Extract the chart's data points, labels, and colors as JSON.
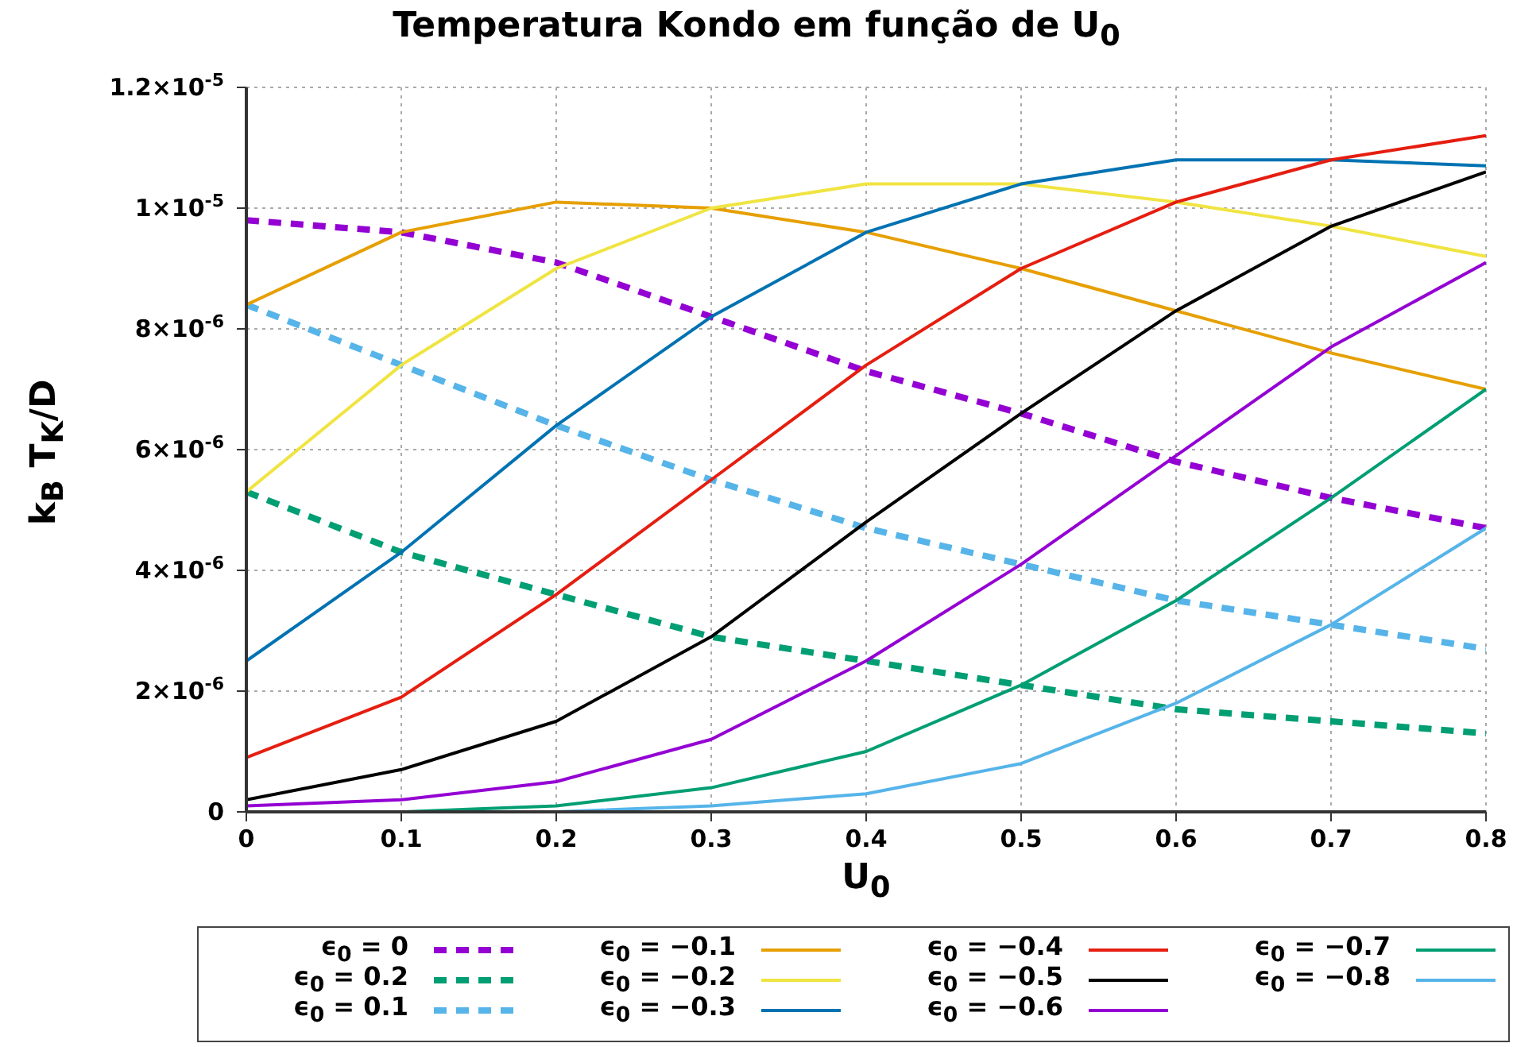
{
  "chart_data": {
    "type": "line",
    "title": "Temperatura Kondo em função de U$_{0}$",
    "xlabel": "U$_{0}$",
    "ylabel": "k$_{B}$ T$_{K}$/D",
    "x": [
      0,
      0.1,
      0.2,
      0.3,
      0.4,
      0.5,
      0.6,
      0.7,
      0.8
    ],
    "xlim": [
      0,
      0.8
    ],
    "xticks": [
      0,
      0.1,
      0.2,
      0.3,
      0.4,
      0.5,
      0.6,
      0.7,
      0.8
    ],
    "ylim": [
      0,
      1.2e-05
    ],
    "yticks": [
      {
        "value": 0,
        "label": "0"
      },
      {
        "value": 2e-06,
        "label": "2×10$^{-6}$"
      },
      {
        "value": 4e-06,
        "label": "4×10$^{-6}$"
      },
      {
        "value": 6e-06,
        "label": "6×10$^{-6}$"
      },
      {
        "value": 8e-06,
        "label": "8×10$^{-6}$"
      },
      {
        "value": 1e-05,
        "label": "1×10$^{-5}$"
      },
      {
        "value": 1.2e-05,
        "label": "1.2×10$^{-5}$"
      }
    ],
    "grid": true,
    "legend": "bottom",
    "marker": "none",
    "series": [
      {
        "name": "ϵ$_{0}$ = 0",
        "color": "#9400d3",
        "line_style": "dashed",
        "values": [
          9.8e-06,
          9.6e-06,
          9.1e-06,
          8.2e-06,
          7.3e-06,
          6.6e-06,
          5.8e-06,
          5.2e-06,
          4.7e-06
        ]
      },
      {
        "name": "ϵ$_{0}$ = 0.2",
        "color": "#009e73",
        "line_style": "dashed",
        "values": [
          5.3e-06,
          4.3e-06,
          3.6e-06,
          2.9e-06,
          2.5e-06,
          2.1e-06,
          1.7e-06,
          1.5e-06,
          1.3e-06
        ]
      },
      {
        "name": "ϵ$_{0}$ = 0.1",
        "color": "#56b4e9",
        "line_style": "dashed",
        "values": [
          8.4e-06,
          7.4e-06,
          6.4e-06,
          5.5e-06,
          4.7e-06,
          4.1e-06,
          3.5e-06,
          3.1e-06,
          2.7e-06
        ]
      },
      {
        "name": "ϵ$_{0}$ = −0.1",
        "color": "#e69f00",
        "line_style": "solid",
        "values": [
          8.4e-06,
          9.6e-06,
          1.01e-05,
          1e-05,
          9.6e-06,
          9e-06,
          8.3e-06,
          7.6e-06,
          7e-06
        ]
      },
      {
        "name": "ϵ$_{0}$ = −0.2",
        "color": "#f0e442",
        "line_style": "solid",
        "values": [
          5.3e-06,
          7.4e-06,
          9e-06,
          1e-05,
          1.04e-05,
          1.04e-05,
          1.01e-05,
          9.7e-06,
          9.2e-06
        ]
      },
      {
        "name": "ϵ$_{0}$ = −0.3",
        "color": "#0072b2",
        "line_style": "solid",
        "values": [
          2.5e-06,
          4.3e-06,
          6.4e-06,
          8.2e-06,
          9.6e-06,
          1.04e-05,
          1.08e-05,
          1.08e-05,
          1.07e-05
        ]
      },
      {
        "name": "ϵ$_{0}$ = −0.4",
        "color": "#e51e10",
        "line_style": "solid",
        "values": [
          9e-07,
          1.9e-06,
          3.6e-06,
          5.5e-06,
          7.4e-06,
          9e-06,
          1.01e-05,
          1.08e-05,
          1.12e-05
        ]
      },
      {
        "name": "ϵ$_{0}$ = −0.5",
        "color": "#000000",
        "line_style": "solid",
        "values": [
          2e-07,
          7e-07,
          1.5e-06,
          2.9e-06,
          4.8e-06,
          6.6e-06,
          8.3e-06,
          9.7e-06,
          1.06e-05
        ]
      },
      {
        "name": "ϵ$_{0}$ = −0.6",
        "color": "#9400d3",
        "line_style": "solid",
        "values": [
          1e-07,
          2e-07,
          5e-07,
          1.2e-06,
          2.5e-06,
          4.1e-06,
          5.9e-06,
          7.7e-06,
          9.1e-06
        ]
      },
      {
        "name": "ϵ$_{0}$ = −0.7",
        "color": "#009e73",
        "line_style": "solid",
        "values": [
          0,
          0,
          1e-07,
          4e-07,
          1e-06,
          2.1e-06,
          3.5e-06,
          5.2e-06,
          7e-06
        ]
      },
      {
        "name": "ϵ$_{0}$ = −0.8",
        "color": "#56b4e9",
        "line_style": "solid",
        "values": [
          0,
          0,
          0,
          1e-07,
          3e-07,
          8e-07,
          1.8e-06,
          3.1e-06,
          4.7e-06
        ]
      }
    ]
  }
}
